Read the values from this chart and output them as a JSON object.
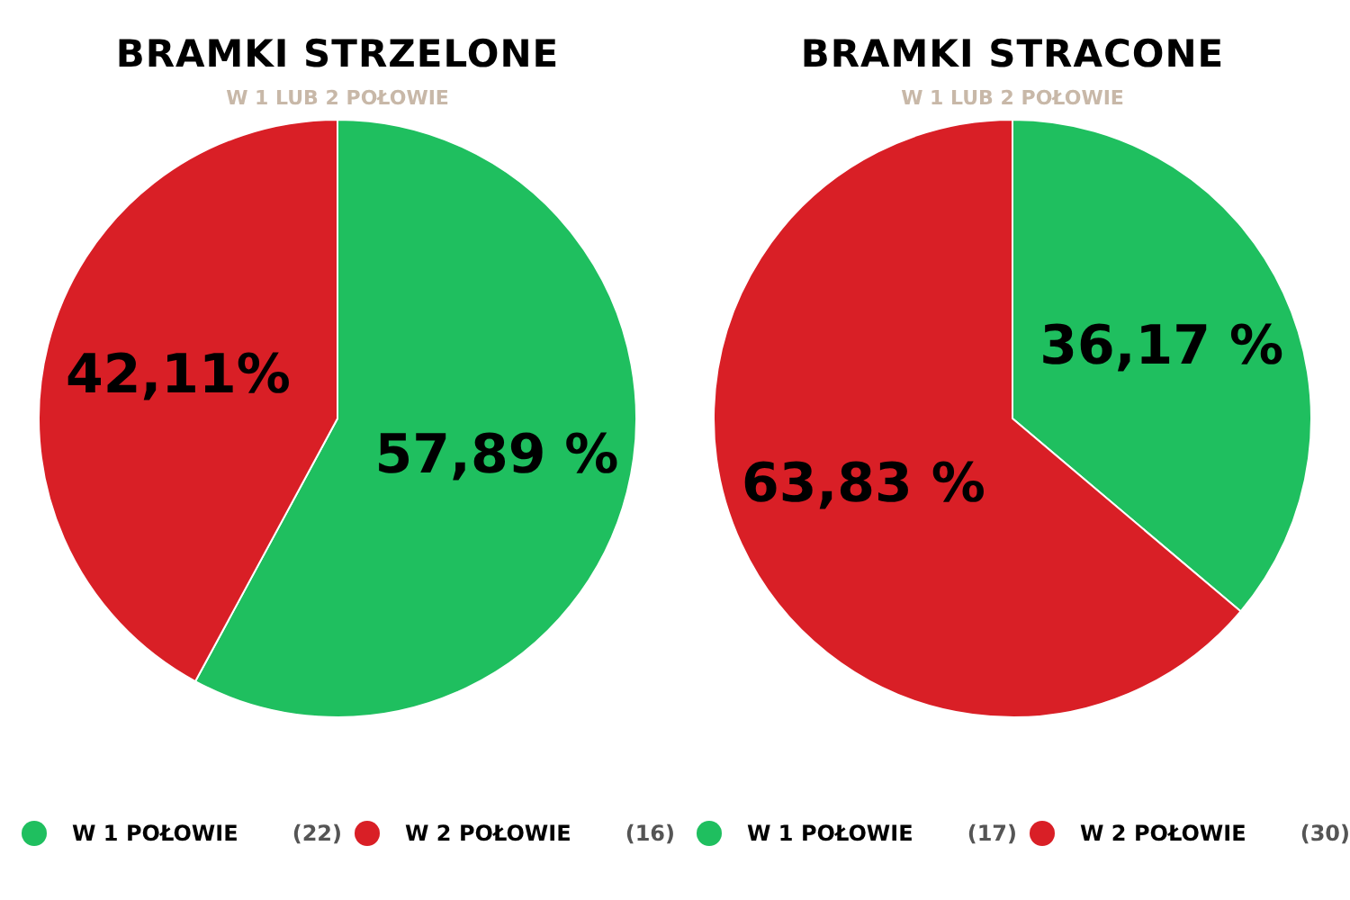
{
  "chart_data": [
    {
      "type": "pie",
      "title": "BRAMKI STRZELONE",
      "subtitle": "W 1 LUB 2 POŁOWIE",
      "categories": [
        "W 1 POŁOWIE",
        "W 2 POŁOWIE"
      ],
      "values": [
        57.89,
        42.11
      ],
      "colors": [
        "#1fbf5f",
        "#d91f26"
      ],
      "value_labels": [
        "57,89 %",
        "42,11%"
      ],
      "annotations": [
        "(22)",
        "(16)"
      ],
      "legend": "bottom"
    },
    {
      "type": "pie",
      "title": "BRAMKI STRACONE",
      "subtitle": "W 1 LUB 2 POŁOWIE",
      "categories": [
        "W 1 POŁOWIE",
        "W 2 POŁOWIE"
      ],
      "values": [
        36.17,
        63.83
      ],
      "colors": [
        "#1fbf5f",
        "#d91f26"
      ],
      "value_labels": [
        "36,17 %",
        "63,83 %"
      ],
      "annotations": [
        "(17)",
        "(30)"
      ],
      "legend": "bottom"
    }
  ]
}
